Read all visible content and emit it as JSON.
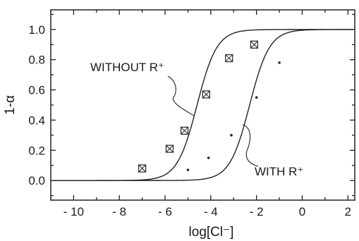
{
  "chart_data": {
    "type": "scatter",
    "title": "",
    "xlabel": "log[Cl⁻]",
    "ylabel": "1-α",
    "xlim": [
      -11,
      2.3
    ],
    "ylim": [
      -0.13,
      1.13
    ],
    "x_ticks": [
      -10,
      -8,
      -6,
      -4,
      -2,
      0,
      2
    ],
    "x_tick_labels": [
      "- 10",
      "- 8",
      "- 6",
      "- 4",
      "- 2",
      "0",
      "2"
    ],
    "y_ticks": [
      0.0,
      0.2,
      0.4,
      0.6,
      0.8,
      1.0
    ],
    "y_tick_labels": [
      "0.0",
      "0.2",
      "0.4",
      "0.6",
      "0.8",
      "1.0"
    ],
    "grid": false,
    "legend": "none",
    "series": [
      {
        "marker": "square-x",
        "fit": {
          "midpoint": -4.6,
          "slope": 1.0
        },
        "points": [
          {
            "x": -7.0,
            "y": 0.08
          },
          {
            "x": -5.8,
            "y": 0.21
          },
          {
            "x": -5.15,
            "y": 0.33
          },
          {
            "x": -4.2,
            "y": 0.57
          },
          {
            "x": -3.2,
            "y": 0.81
          },
          {
            "x": -2.1,
            "y": 0.9
          }
        ]
      },
      {
        "marker": "dot",
        "fit": {
          "midpoint": -2.3,
          "slope": 1.0
        },
        "points": [
          {
            "x": -5.0,
            "y": 0.07
          },
          {
            "x": -4.1,
            "y": 0.15
          },
          {
            "x": -3.1,
            "y": 0.3
          },
          {
            "x": -2.0,
            "y": 0.55
          },
          {
            "x": -1.0,
            "y": 0.78
          }
        ]
      }
    ],
    "annotations": [
      {
        "text": "WITHOUT R⁺",
        "target": {
          "x": -4.75,
          "y": 0.43
        }
      },
      {
        "text": "WITH R⁺",
        "target": {
          "x": -2.6,
          "y": 0.37
        }
      }
    ]
  }
}
